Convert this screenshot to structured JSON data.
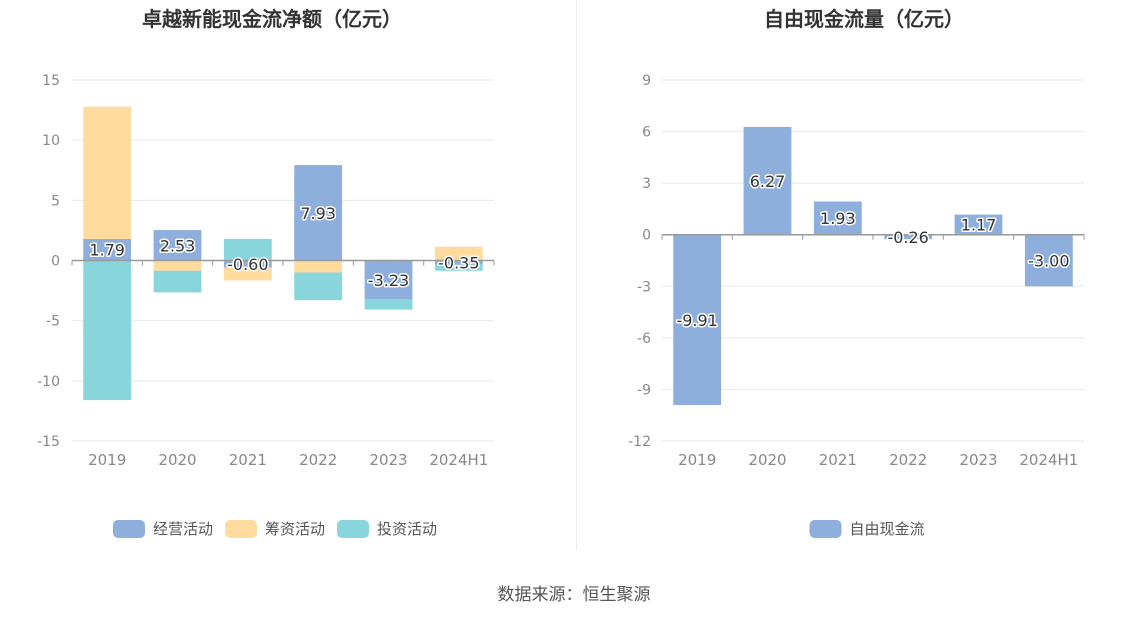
{
  "source_label": "数据来源：恒生聚源",
  "colors": {
    "operating": "#8eaedc",
    "financing": "#ffdb9e",
    "investing": "#88d6db",
    "fcf": "#8eaedc",
    "grid": "#e4e7f0",
    "axis": "#999999",
    "tick_text": "#888888",
    "title_text": "#333333"
  },
  "chart_data": [
    {
      "type": "bar",
      "stacked": true,
      "title": "卓越新能现金流净额（亿元）",
      "categories": [
        "2019",
        "2020",
        "2021",
        "2022",
        "2023",
        "2024H1"
      ],
      "ylim": [
        -15,
        15
      ],
      "yticks": [
        15,
        10,
        5,
        0,
        -5,
        -10,
        -15
      ],
      "grid": true,
      "legend_position": "bottom",
      "series": [
        {
          "name": "经营活动",
          "color_key": "operating",
          "values": [
            1.79,
            2.53,
            -0.6,
            7.93,
            -3.23,
            -0.35
          ],
          "labels": [
            "1.79",
            "2.53",
            "-0.60",
            "7.93",
            "-3.23",
            "-0.35"
          ]
        },
        {
          "name": "筹资活动",
          "color_key": "financing",
          "values": [
            11.0,
            -0.85,
            -1.05,
            -1.0,
            0.0,
            1.15
          ]
        },
        {
          "name": "投资活动",
          "color_key": "investing",
          "values": [
            -11.6,
            -1.8,
            1.8,
            -2.3,
            -0.85,
            -0.5
          ]
        }
      ]
    },
    {
      "type": "bar",
      "title": "自由现金流量（亿元）",
      "categories": [
        "2019",
        "2020",
        "2021",
        "2022",
        "2023",
        "2024H1"
      ],
      "ylim": [
        -12,
        9
      ],
      "yticks": [
        9,
        6,
        3,
        0,
        -3,
        -6,
        -9,
        -12
      ],
      "grid": true,
      "legend_position": "bottom",
      "series": [
        {
          "name": "自由现金流",
          "color_key": "fcf",
          "values": [
            -9.91,
            6.27,
            1.93,
            -0.26,
            1.17,
            -3.0
          ],
          "labels": [
            "-9.91",
            "6.27",
            "1.93",
            "-0.26",
            "1.17",
            "-3.00"
          ]
        }
      ]
    }
  ]
}
